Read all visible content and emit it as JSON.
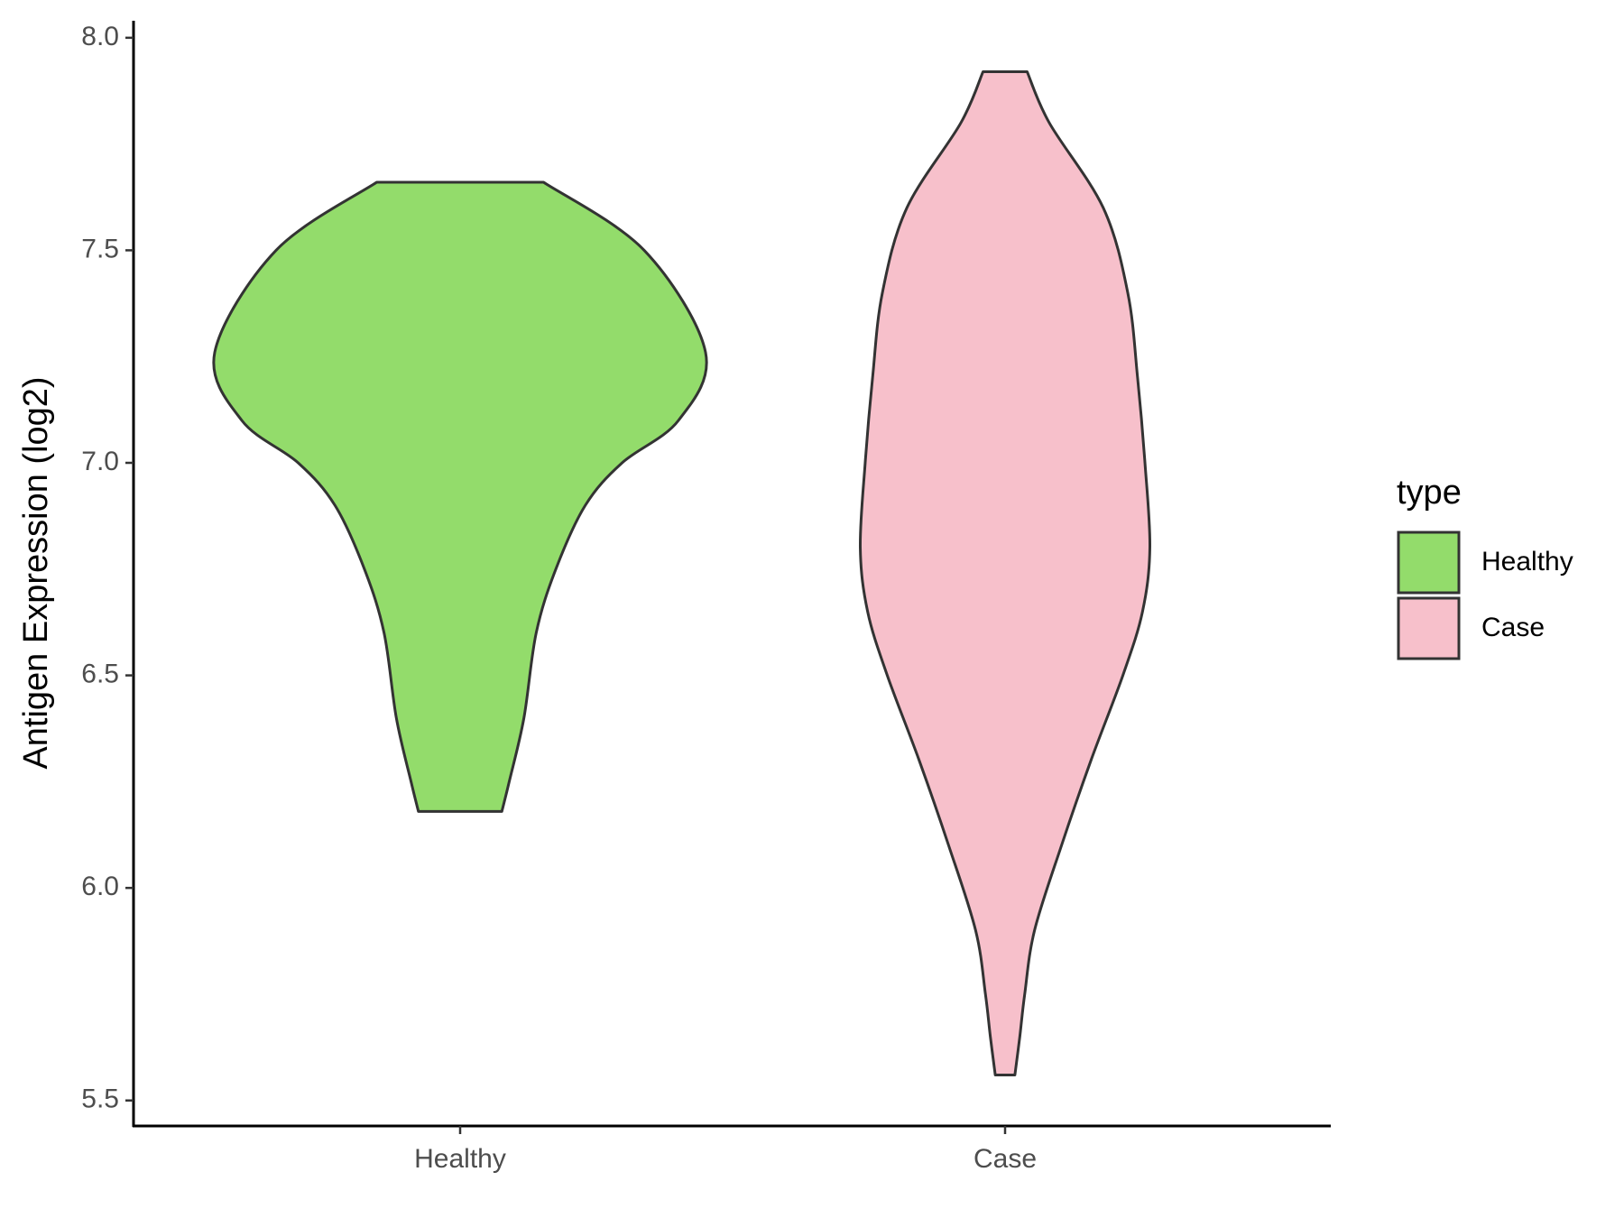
{
  "chart_data": {
    "type": "violin",
    "y_label": "Antigen Expression (log2)",
    "categories": [
      "Healthy",
      "Case"
    ],
    "legend_title": "type",
    "series": [
      {
        "name": "Healthy",
        "color": "#93dc6b",
        "y": [
          6.18,
          6.25,
          6.4,
          6.6,
          6.75,
          6.9,
          7.0,
          7.1,
          7.26,
          7.5,
          7.66
        ],
        "density": [
          0.17,
          0.2,
          0.26,
          0.31,
          0.39,
          0.51,
          0.66,
          0.89,
          1.0,
          0.75,
          0.34
        ]
      },
      {
        "name": "Case",
        "color": "#f7c0cb",
        "y": [
          5.56,
          5.65,
          5.75,
          5.9,
          6.1,
          6.3,
          6.5,
          6.65,
          6.8,
          7.0,
          7.2,
          7.4,
          7.6,
          7.8,
          7.92
        ],
        "density": [
          0.04,
          0.06,
          0.08,
          0.12,
          0.23,
          0.35,
          0.48,
          0.56,
          0.59,
          0.57,
          0.54,
          0.5,
          0.4,
          0.18,
          0.09
        ]
      }
    ],
    "ylim": [
      5.44,
      8.04
    ],
    "yticks": [
      {
        "value": 5.5,
        "label": "5.5"
      },
      {
        "value": 6,
        "label": "6.0"
      },
      {
        "value": 6.5,
        "label": "6.5"
      },
      {
        "value": 7,
        "label": "7.0"
      },
      {
        "value": 7.5,
        "label": "7.5"
      },
      {
        "value": 8,
        "label": "8.0"
      }
    ],
    "grid": false
  }
}
